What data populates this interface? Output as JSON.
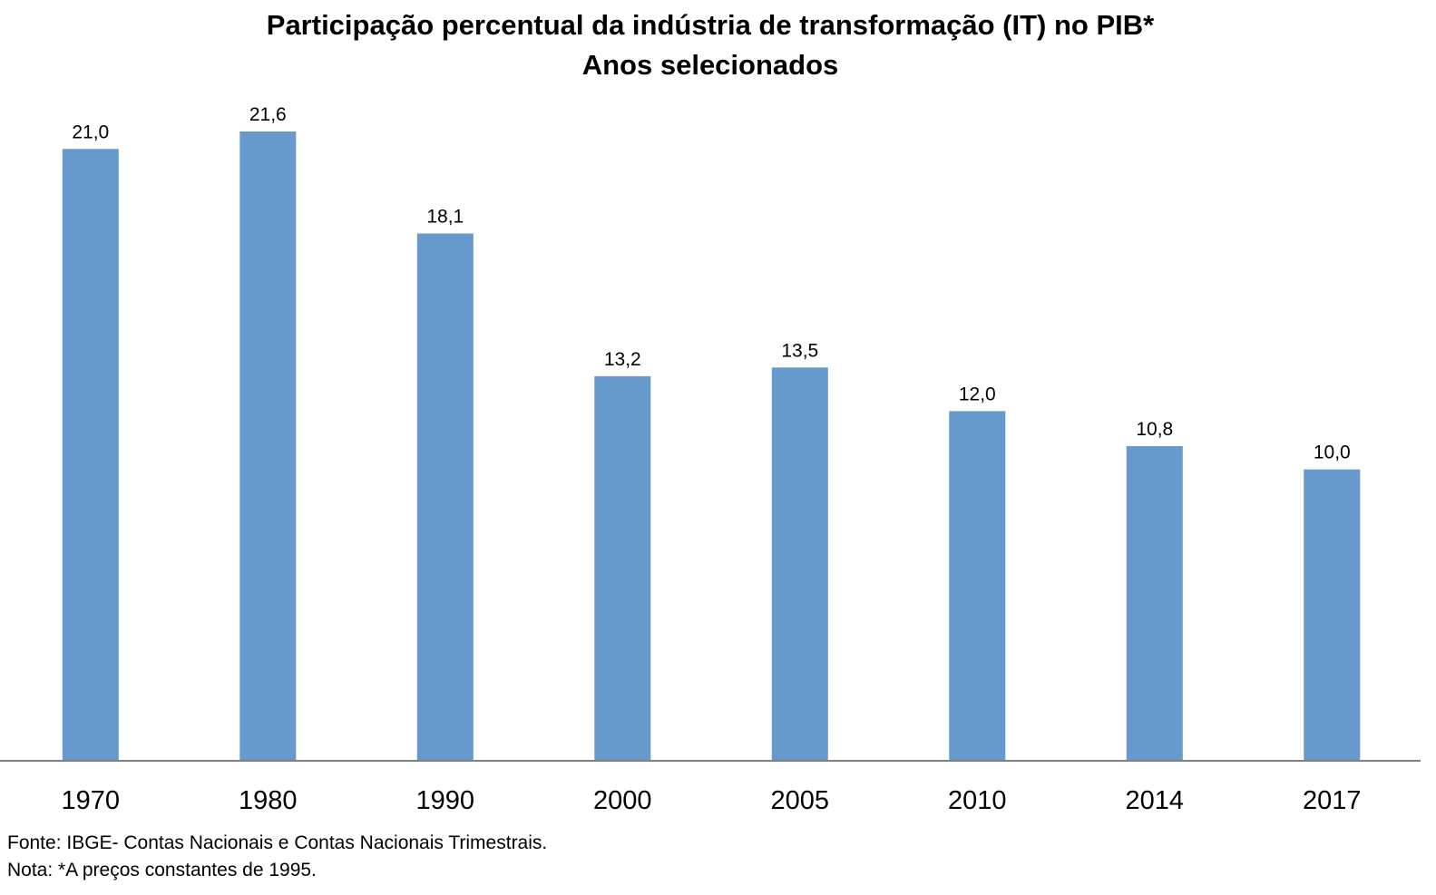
{
  "chart_data": {
    "type": "bar",
    "title": "Participação percentual da indústria de transformação (IT) no PIB*",
    "subtitle": "Anos selecionados",
    "categories": [
      "1970",
      "1980",
      "1990",
      "2000",
      "2005",
      "2010",
      "2014",
      "2017"
    ],
    "values": [
      21.0,
      21.6,
      18.1,
      13.2,
      13.5,
      12.0,
      10.8,
      10.0
    ],
    "data_labels": [
      "21,0",
      "21,6",
      "18,1",
      "13,2",
      "13,5",
      "12,0",
      "10,8",
      "10,0"
    ],
    "xlabel": "",
    "ylabel": "",
    "ylim": [
      0,
      21.6
    ],
    "grid": false,
    "legend": "none",
    "bar_color": "#6699CC",
    "axis_color": "#808080"
  },
  "notes": {
    "source": "Fonte: IBGE- Contas Nacionais e Contas Nacionais Trimestrais.",
    "note": "Nota: *A preços constantes de 1995."
  }
}
